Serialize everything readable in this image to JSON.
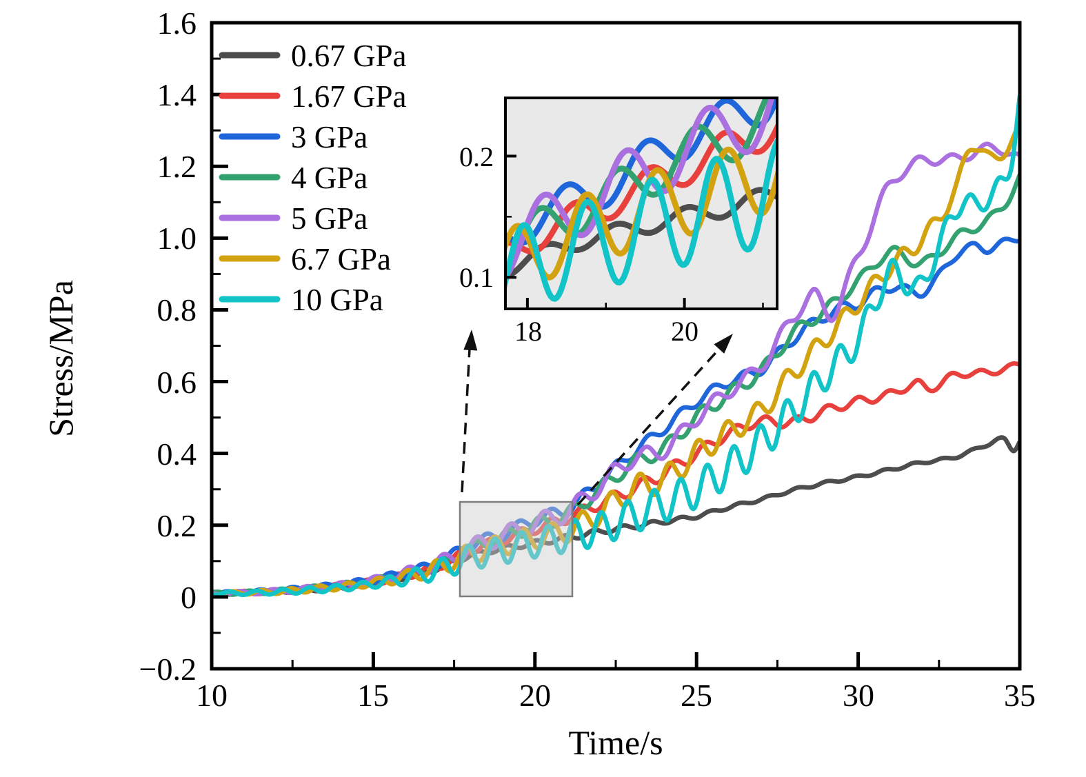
{
  "chart_data": {
    "type": "line",
    "title": "",
    "xlabel": "Time/s",
    "ylabel": "Stress/MPa",
    "xlim": [
      10,
      35
    ],
    "ylim": [
      -0.2,
      1.6
    ],
    "x_major_ticks": [
      10,
      15,
      20,
      25,
      30,
      35
    ],
    "x_minor_ticks": [
      12.5,
      17.5,
      22.5,
      27.5,
      32.5
    ],
    "y_major_ticks": [
      -0.2,
      0,
      0.2,
      0.4,
      0.6,
      0.8,
      1.0,
      1.2,
      1.4,
      1.6
    ],
    "y_minor_ticks": [
      -0.1,
      0.1,
      0.3,
      0.5,
      0.7,
      0.9,
      1.1,
      1.3,
      1.5
    ],
    "x_tick_labels": [
      "10",
      "15",
      "20",
      "25",
      "30",
      "35"
    ],
    "y_tick_labels": [
      "−0.2",
      "0",
      "0.2",
      "0.4",
      "0.6",
      "0.8",
      "1.0",
      "1.2",
      "1.4",
      "1.6"
    ],
    "legend_position": "upper left",
    "grid": false,
    "series": [
      {
        "name": "0.67 GPa",
        "color": "#4d4d4d",
        "ripple": {
          "period": 0.9,
          "phase": 0.0,
          "amp": [
            [
              10,
              0.003
            ],
            [
              15,
              0.007
            ],
            [
              18,
              0.006
            ],
            [
              21,
              0.008
            ],
            [
              24,
              0.006
            ],
            [
              27,
              0.004
            ],
            [
              35,
              0.004
            ]
          ]
        },
        "points": [
          [
            10,
            0.01
          ],
          [
            11,
            0.012
          ],
          [
            12,
            0.015
          ],
          [
            13,
            0.02
          ],
          [
            14,
            0.028
          ],
          [
            15,
            0.038
          ],
          [
            16,
            0.055
          ],
          [
            17,
            0.08
          ],
          [
            18,
            0.115
          ],
          [
            19,
            0.135
          ],
          [
            20,
            0.15
          ],
          [
            21,
            0.165
          ],
          [
            22,
            0.182
          ],
          [
            23,
            0.196
          ],
          [
            24,
            0.21
          ],
          [
            25,
            0.225
          ],
          [
            26,
            0.25
          ],
          [
            27,
            0.272
          ],
          [
            28,
            0.298
          ],
          [
            29,
            0.318
          ],
          [
            30,
            0.335
          ],
          [
            31,
            0.355
          ],
          [
            32,
            0.375
          ],
          [
            33,
            0.39
          ],
          [
            34,
            0.425
          ],
          [
            34.5,
            0.44
          ],
          [
            34.8,
            0.41
          ],
          [
            35,
            0.435
          ]
        ]
      },
      {
        "name": "1.67 GPa",
        "color": "#e8403d",
        "ripple": {
          "period": 0.95,
          "phase": 4.21,
          "amp": [
            [
              10,
              0.004
            ],
            [
              15,
              0.009
            ],
            [
              18,
              0.012
            ],
            [
              21,
              0.015
            ],
            [
              24,
              0.018
            ],
            [
              27,
              0.012
            ],
            [
              30,
              0.012
            ],
            [
              35,
              0.008
            ]
          ]
        },
        "points": [
          [
            10,
            0.01
          ],
          [
            11,
            0.012
          ],
          [
            12,
            0.016
          ],
          [
            13,
            0.022
          ],
          [
            14,
            0.03
          ],
          [
            15,
            0.042
          ],
          [
            16,
            0.06
          ],
          [
            17,
            0.085
          ],
          [
            18,
            0.13
          ],
          [
            19,
            0.16
          ],
          [
            20,
            0.19
          ],
          [
            21,
            0.22
          ],
          [
            22,
            0.26
          ],
          [
            23,
            0.3
          ],
          [
            24,
            0.345
          ],
          [
            25,
            0.4
          ],
          [
            26,
            0.455
          ],
          [
            27,
            0.49
          ],
          [
            27.7,
            0.485
          ],
          [
            28.5,
            0.5
          ],
          [
            29,
            0.52
          ],
          [
            30,
            0.545
          ],
          [
            31,
            0.565
          ],
          [
            31.8,
            0.595
          ],
          [
            32.2,
            0.58
          ],
          [
            33,
            0.618
          ],
          [
            34,
            0.625
          ],
          [
            34.5,
            0.635
          ],
          [
            35,
            0.648
          ]
        ]
      },
      {
        "name": "3 GPa",
        "color": "#1f66db",
        "ripple": {
          "period": 1.0,
          "phase": 4.71,
          "amp": [
            [
              10,
              0.004
            ],
            [
              15,
              0.009
            ],
            [
              18,
              0.015
            ],
            [
              21,
              0.018
            ],
            [
              24,
              0.014
            ],
            [
              27,
              0.014
            ],
            [
              30,
              0.016
            ],
            [
              33,
              0.01
            ],
            [
              35,
              0.008
            ]
          ]
        },
        "points": [
          [
            10,
            0.01
          ],
          [
            11,
            0.013
          ],
          [
            12,
            0.018
          ],
          [
            13,
            0.025
          ],
          [
            14,
            0.034
          ],
          [
            15,
            0.048
          ],
          [
            16,
            0.068
          ],
          [
            17,
            0.095
          ],
          [
            18,
            0.145
          ],
          [
            19,
            0.175
          ],
          [
            20,
            0.215
          ],
          [
            21,
            0.245
          ],
          [
            22,
            0.32
          ],
          [
            23,
            0.4
          ],
          [
            24,
            0.47
          ],
          [
            25,
            0.545
          ],
          [
            26,
            0.6
          ],
          [
            27,
            0.635
          ],
          [
            28,
            0.72
          ],
          [
            29,
            0.785
          ],
          [
            30,
            0.82
          ],
          [
            31,
            0.865
          ],
          [
            32,
            0.85
          ],
          [
            33,
            0.95
          ],
          [
            33.6,
            0.978
          ],
          [
            34,
            0.968
          ],
          [
            34.5,
            0.988
          ],
          [
            35,
            1.0
          ]
        ]
      },
      {
        "name": "4 GPa",
        "color": "#33a170",
        "ripple": {
          "period": 1.0,
          "phase": 0.63,
          "amp": [
            [
              10,
              0.004
            ],
            [
              15,
              0.009
            ],
            [
              18,
              0.018
            ],
            [
              21,
              0.02
            ],
            [
              24,
              0.02
            ],
            [
              27,
              0.018
            ],
            [
              30,
              0.015
            ],
            [
              35,
              0.012
            ]
          ]
        },
        "points": [
          [
            10,
            0.01
          ],
          [
            11,
            0.012
          ],
          [
            12,
            0.016
          ],
          [
            13,
            0.023
          ],
          [
            14,
            0.032
          ],
          [
            15,
            0.045
          ],
          [
            16,
            0.064
          ],
          [
            17,
            0.09
          ],
          [
            18,
            0.133
          ],
          [
            19,
            0.165
          ],
          [
            20,
            0.2
          ],
          [
            21,
            0.23
          ],
          [
            22,
            0.3
          ],
          [
            23,
            0.37
          ],
          [
            24,
            0.415
          ],
          [
            25,
            0.5
          ],
          [
            26,
            0.565
          ],
          [
            27,
            0.63
          ],
          [
            28,
            0.735
          ],
          [
            29,
            0.8
          ],
          [
            30,
            0.88
          ],
          [
            31,
            0.96
          ],
          [
            32,
            0.93
          ],
          [
            33,
            1.0
          ],
          [
            34,
            1.05
          ],
          [
            34.5,
            1.09
          ],
          [
            35,
            1.17
          ]
        ]
      },
      {
        "name": "5 GPa",
        "color": "#aa70e0",
        "ripple": {
          "period": 1.05,
          "phase": 5.76,
          "amp": [
            [
              10,
              0.004
            ],
            [
              15,
              0.01
            ],
            [
              18,
              0.025
            ],
            [
              21,
              0.026
            ],
            [
              24,
              0.022
            ],
            [
              27,
              0.02
            ],
            [
              30,
              0.02
            ],
            [
              33,
              0.014
            ],
            [
              35,
              0.012
            ]
          ]
        },
        "points": [
          [
            10,
            0.01
          ],
          [
            11,
            0.012
          ],
          [
            12,
            0.016
          ],
          [
            13,
            0.023
          ],
          [
            14,
            0.032
          ],
          [
            15,
            0.046
          ],
          [
            16,
            0.066
          ],
          [
            17,
            0.092
          ],
          [
            18,
            0.135
          ],
          [
            19,
            0.17
          ],
          [
            20,
            0.205
          ],
          [
            21,
            0.238
          ],
          [
            22,
            0.31
          ],
          [
            23,
            0.385
          ],
          [
            24,
            0.41
          ],
          [
            25,
            0.5
          ],
          [
            26,
            0.575
          ],
          [
            27,
            0.645
          ],
          [
            28,
            0.78
          ],
          [
            28.6,
            0.84
          ],
          [
            29.2,
            0.79
          ],
          [
            30,
            0.95
          ],
          [
            31,
            1.15
          ],
          [
            32,
            1.215
          ],
          [
            33,
            1.22
          ],
          [
            34,
            1.25
          ],
          [
            34.5,
            1.245
          ],
          [
            35,
            1.22
          ]
        ]
      },
      {
        "name": "6.7 GPa",
        "color": "#d2a210",
        "ripple": {
          "period": 0.9,
          "phase": 2.64,
          "amp": [
            [
              10,
              0.004
            ],
            [
              15,
              0.01
            ],
            [
              18,
              0.028
            ],
            [
              21,
              0.032
            ],
            [
              24,
              0.035
            ],
            [
              27,
              0.03
            ],
            [
              30,
              0.025
            ],
            [
              33,
              0.02
            ],
            [
              35,
              0.015
            ]
          ]
        },
        "points": [
          [
            10,
            0.01
          ],
          [
            11,
            0.012
          ],
          [
            12,
            0.015
          ],
          [
            13,
            0.021
          ],
          [
            14,
            0.029
          ],
          [
            15,
            0.04
          ],
          [
            16,
            0.057
          ],
          [
            17,
            0.082
          ],
          [
            18,
            0.12
          ],
          [
            19,
            0.145
          ],
          [
            20,
            0.165
          ],
          [
            21,
            0.185
          ],
          [
            22,
            0.235
          ],
          [
            23,
            0.3
          ],
          [
            24,
            0.33
          ],
          [
            25,
            0.4
          ],
          [
            26,
            0.46
          ],
          [
            27,
            0.52
          ],
          [
            28,
            0.626
          ],
          [
            29,
            0.72
          ],
          [
            30,
            0.82
          ],
          [
            31,
            0.92
          ],
          [
            32,
            1.0
          ],
          [
            33,
            1.13
          ],
          [
            33.5,
            1.26
          ],
          [
            34.1,
            1.22
          ],
          [
            34.6,
            1.25
          ],
          [
            35,
            1.3
          ]
        ]
      },
      {
        "name": "10 GPa",
        "color": "#12c4c7",
        "ripple": {
          "period": 0.82,
          "phase": 2.32,
          "amp": [
            [
              10,
              0.004
            ],
            [
              15,
              0.01
            ],
            [
              18,
              0.035
            ],
            [
              21,
              0.042
            ],
            [
              24,
              0.05
            ],
            [
              27,
              0.05
            ],
            [
              30,
              0.04
            ],
            [
              33,
              0.028
            ],
            [
              35,
              0.02
            ]
          ]
        },
        "points": [
          [
            10,
            0.01
          ],
          [
            11,
            0.011
          ],
          [
            12,
            0.014
          ],
          [
            13,
            0.019
          ],
          [
            14,
            0.026
          ],
          [
            15,
            0.036
          ],
          [
            16,
            0.052
          ],
          [
            17,
            0.075
          ],
          [
            18,
            0.11
          ],
          [
            19,
            0.13
          ],
          [
            20,
            0.15
          ],
          [
            21,
            0.168
          ],
          [
            22,
            0.19
          ],
          [
            23,
            0.225
          ],
          [
            24,
            0.26
          ],
          [
            25,
            0.3
          ],
          [
            26,
            0.36
          ],
          [
            27,
            0.43
          ],
          [
            28,
            0.52
          ],
          [
            29,
            0.62
          ],
          [
            30,
            0.72
          ],
          [
            31,
            0.9
          ],
          [
            31.9,
            0.86
          ],
          [
            32.5,
            0.98
          ],
          [
            33.2,
            1.1
          ],
          [
            33.7,
            1.09
          ],
          [
            34.3,
            1.14
          ],
          [
            34.7,
            1.2
          ],
          [
            35,
            1.39
          ]
        ]
      }
    ],
    "zoom_region": {
      "t_range": [
        17.68,
        21.16
      ],
      "v_range": [
        0.005,
        0.265
      ]
    },
    "inset": {
      "xlim": [
        17.72,
        21.18
      ],
      "ylim": [
        0.074,
        0.248
      ],
      "x_major_ticks": [
        18,
        20
      ],
      "x_minor_ticks": [
        19,
        21
      ],
      "y_major_ticks": [
        0.1,
        0.2
      ],
      "y_minor_ticks": [
        0.15
      ],
      "x_tick_labels": [
        "18",
        "20"
      ],
      "y_tick_labels": [
        "0.1",
        "0.2"
      ],
      "background": "#e9e9e9"
    },
    "colors": {
      "axis": "#000000",
      "arrow": "#111111",
      "zoom_rect_border": "#7d7d7d"
    }
  }
}
